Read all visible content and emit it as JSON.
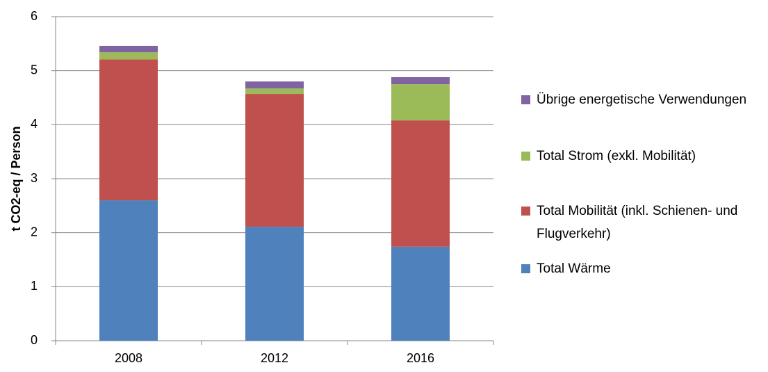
{
  "chart_data": {
    "type": "stacked_bar",
    "y_label": "t CO2-eq / Person",
    "categories": [
      "2008",
      "2012",
      "2016"
    ],
    "series": [
      {
        "name": "Total Wärme",
        "color": "#4f81bd",
        "values": [
          2.6,
          2.11,
          1.74
        ]
      },
      {
        "name": "Total Mobilität (inkl. Schienen- und Flugverkehr)",
        "color": "#c0504d",
        "values": [
          2.61,
          2.46,
          2.34
        ]
      },
      {
        "name": "Total Strom (exkl. Mobilität)",
        "color": "#9bbb59",
        "values": [
          0.13,
          0.1,
          0.67
        ]
      },
      {
        "name": "Übrige energetische Verwendungen",
        "color": "#8064a2",
        "values": [
          0.12,
          0.13,
          0.13
        ]
      }
    ],
    "ylim": [
      0,
      6
    ],
    "yticks": [
      0,
      1,
      2,
      3,
      4,
      5,
      6
    ],
    "grid": true,
    "legend": "right"
  }
}
